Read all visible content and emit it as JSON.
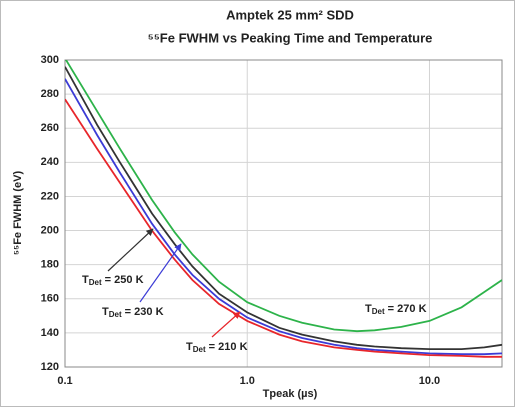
{
  "chart_data": {
    "type": "line",
    "title": "Amptek 25 mm² SDD",
    "subtitle": "⁵⁵Fe FWHM vs Peaking Time and Temperature",
    "x_label": "Tpeak (µs)",
    "y_label": "⁵⁵Fe FWHM (eV)",
    "x_scale": "log",
    "grid": true,
    "x": [
      0.1,
      0.15,
      0.2,
      0.3,
      0.4,
      0.5,
      0.7,
      1,
      1.5,
      2,
      3,
      4,
      5,
      7,
      10,
      15,
      20,
      25
    ],
    "series": [
      {
        "color": "#2db34a",
        "values": [
          301,
          270,
          248,
          218,
          199,
          186,
          170,
          158,
          150,
          146,
          142,
          141,
          141.5,
          143.5,
          147,
          155,
          164,
          171
        ]
      },
      {
        "color": "#333333",
        "values": [
          296,
          262,
          240,
          210,
          192,
          179,
          163,
          152,
          143,
          139,
          135,
          133,
          132,
          131,
          130.5,
          130.5,
          131.5,
          133
        ]
      },
      {
        "color": "#3b3bd6",
        "values": [
          289,
          256,
          234,
          204,
          186,
          174,
          160,
          149,
          141,
          137,
          133,
          131,
          130,
          129,
          128,
          127.5,
          127.5,
          128
        ]
      },
      {
        "color": "#e8262b",
        "values": [
          277,
          248,
          228,
          200,
          183,
          171,
          157,
          147,
          139,
          135,
          131.5,
          130,
          129,
          128,
          127,
          126.5,
          126,
          126
        ]
      }
    ],
    "annotations": [
      {
        "symbol": "T",
        "subscript": "Det",
        "text": " = 270 K"
      },
      {
        "symbol": "T",
        "subscript": "Det",
        "text": " = 250 K"
      },
      {
        "symbol": "T",
        "subscript": "Det",
        "text": " = 230 K"
      },
      {
        "symbol": "T",
        "subscript": "Det",
        "text": " = 210 K"
      }
    ],
    "xlim": [
      0.1,
      25
    ],
    "ylim": [
      120,
      300
    ],
    "xticks": [
      0.1,
      {
        "value": 1,
        "label": "1.0"
      },
      {
        "value": 10,
        "label": "10.0"
      }
    ],
    "yticks": [
      120,
      140,
      160,
      180,
      200,
      220,
      240,
      260,
      280,
      300
    ]
  }
}
